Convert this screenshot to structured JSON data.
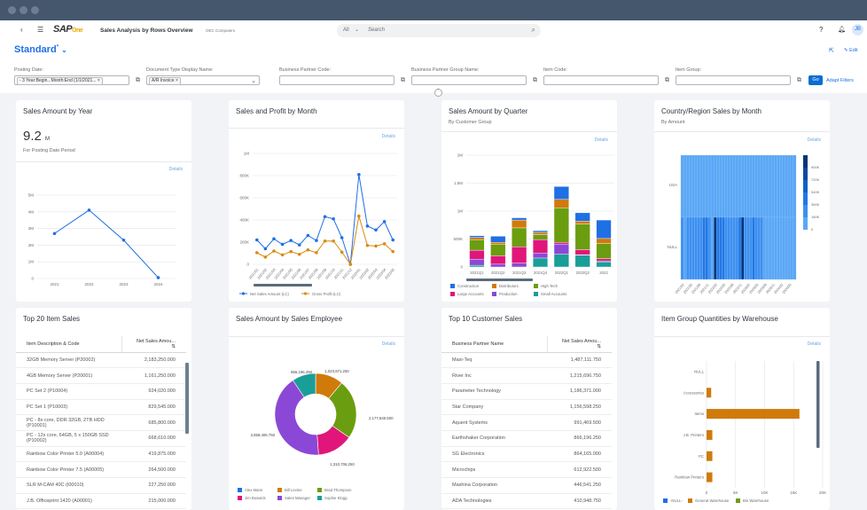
{
  "app": {
    "logo": "SAP Business One",
    "title": "Sales Analysis by Rows Overview",
    "company": "OEC Computers",
    "search_scope": "All",
    "search_placeholder": "Search",
    "avatar": "JB",
    "variant": "Standard",
    "variant_modified": "*",
    "edit_label": "Edit",
    "go_label": "Go",
    "adapt_filters_label": "Adapt Filters"
  },
  "filters": [
    {
      "label": "Posting Date:",
      "token": "- 3 Year:Begin...Month:End (1/1/2021...",
      "icon": "value-help-icon"
    },
    {
      "label": "Document Type Display Name:",
      "token": "A/R Invoice",
      "icon": "chevron-down-icon"
    },
    {
      "label": "Business Partner Code:",
      "token": "",
      "icon": "value-help-icon"
    },
    {
      "label": "Business Partner Group Name:",
      "token": "",
      "icon": "value-help-icon"
    },
    {
      "label": "Item Code:",
      "token": "",
      "icon": "value-help-icon"
    },
    {
      "label": "Item Group:",
      "token": "",
      "icon": "value-help-icon"
    }
  ],
  "details_label": "Details",
  "cards": {
    "year": {
      "title": "Sales Amount by Year",
      "kpi": "9.2",
      "kpi_unit": "M",
      "kpi_caption": "For Posting Date Period"
    },
    "month": {
      "title": "Sales and Profit by Month"
    },
    "quarter": {
      "title": "Sales Amount by Quarter",
      "subtitle": "By Customer Group"
    },
    "country": {
      "title": "Country/Region Sales by Month",
      "subtitle": "By Amount"
    },
    "items": {
      "title": "Top 20 Item Sales",
      "columns": [
        "Item Description & Code",
        "Net Sales Amou..."
      ],
      "rows": [
        [
          "32GB Memory Server (P20002)",
          "2,183,250.000"
        ],
        [
          "4GB Memory Server (P20001)",
          "1,161,250.000"
        ],
        [
          "PC Set 2 (P10004)",
          "924,020.000"
        ],
        [
          "PC Set 1 (P10003)",
          "829,545.000"
        ],
        [
          "PC - 8x core, DDR 32GB, 2TB HDD (P10001)",
          "685,800.000"
        ],
        [
          "PC - 12x core, 64GB, 5 x 150GB SSD (P10002)",
          "668,610.000"
        ],
        [
          "Rainbow Color Printer 5.0 (A00004)",
          "419,875.000"
        ],
        [
          "Rainbow Color Printer 7.5 (A00005)",
          "264,500.000"
        ],
        [
          "SLR M-CAM 40C (I00010)",
          "227,250.000"
        ],
        [
          "J.B. Officeprint 1420 (A00001)",
          "215,000.000"
        ]
      ]
    },
    "employee": {
      "title": "Sales Amount by Sales Employee"
    },
    "customers": {
      "title": "Top 10 Customer Sales",
      "columns": [
        "Business Partner Name",
        "Net Sales Amou..."
      ],
      "rows": [
        [
          "Maxi-Teq",
          "1,487,111.750"
        ],
        [
          "River Inc",
          "1,215,696.750"
        ],
        [
          "Parameter Technology",
          "1,186,371.000"
        ],
        [
          "Star Company",
          "1,156,598.250"
        ],
        [
          "Aquent Systems",
          "991,469.500"
        ],
        [
          "Earthshaker Corporation",
          "866,196.250"
        ],
        [
          "SG Electronics",
          "864,165.000"
        ],
        [
          "Microchips",
          "612,922.500"
        ],
        [
          "Mashina Corporation",
          "446,541.250"
        ],
        [
          "ADA Technologies",
          "410,948.750"
        ]
      ]
    },
    "warehouse": {
      "title": "Item Group Quantities by Warehouse"
    }
  },
  "chart_data": [
    {
      "id": "year",
      "type": "line",
      "categories": [
        "2021",
        "2022",
        "2023",
        "2024"
      ],
      "values": [
        2.7,
        4.1,
        2.3,
        0.05
      ],
      "yticks": [
        "0",
        "1M",
        "2M",
        "3M",
        "4M",
        "5M"
      ],
      "ylim": [
        0,
        5
      ],
      "unit": "M",
      "color": "#1f6fe5",
      "grid": true
    },
    {
      "id": "month",
      "type": "line",
      "categories": [
        "2021/01",
        "2021/02",
        "2021/03",
        "2021/04",
        "2021/05",
        "2021/06",
        "2021/07",
        "2021/08",
        "2021/09",
        "2021/10",
        "2021/11",
        "2021/12",
        "2022/01",
        "2022/02",
        "2022/03",
        "2022/04",
        "2022/05"
      ],
      "series": [
        {
          "name": "Net Sales Amount (LC)",
          "color": "#1f6fe5",
          "values": [
            220,
            140,
            230,
            180,
            215,
            175,
            260,
            215,
            430,
            410,
            240,
            0,
            810,
            345,
            310,
            385,
            220
          ]
        },
        {
          "name": "Gross Profit (LC)",
          "color": "#d98a10",
          "values": [
            105,
            65,
            120,
            85,
            115,
            90,
            130,
            105,
            210,
            210,
            110,
            0,
            435,
            170,
            165,
            185,
            115
          ]
        }
      ],
      "unit": "K",
      "yticks": [
        "0",
        "200K",
        "400K",
        "600K",
        "800K",
        "1M"
      ],
      "ylim": [
        0,
        1000
      ],
      "grid": true,
      "legend": "bottom"
    },
    {
      "id": "quarter",
      "type": "bar",
      "stacked": true,
      "categories": [
        "2021Q1",
        "2021Q2",
        "2021Q3",
        "2021Q4",
        "2022Q1",
        "2022Q2",
        "2022"
      ],
      "series": [
        {
          "name": "Small Accounts",
          "color": "#1a9e98",
          "values": [
            30,
            0,
            0,
            160,
            230,
            210,
            90
          ]
        },
        {
          "name": "Production",
          "color": "#8b48d6",
          "values": [
            110,
            50,
            70,
            90,
            180,
            10,
            20
          ]
        },
        {
          "name": "Large Accounts",
          "color": "#e0167a",
          "values": [
            160,
            150,
            290,
            240,
            30,
            90,
            40
          ]
        },
        {
          "name": "High Tech",
          "color": "#6b9d10",
          "values": [
            190,
            200,
            340,
            90,
            620,
            460,
            270
          ]
        },
        {
          "name": "Distributors",
          "color": "#d07a0c",
          "values": [
            40,
            40,
            140,
            40,
            150,
            50,
            90
          ]
        },
        {
          "name": "Construction",
          "color": "#1f6fe5",
          "values": [
            30,
            110,
            40,
            30,
            230,
            150,
            330
          ]
        }
      ],
      "legend_order": [
        "Construction",
        "Distributors",
        "High Tech",
        "Large Accounts",
        "Production",
        "Small Accounts"
      ],
      "unit": "K",
      "yticks": [
        "0",
        "500K",
        "1M",
        "1.5M",
        "2M"
      ],
      "ylim": [
        0,
        2000
      ],
      "grid": true,
      "legend": "bottom"
    },
    {
      "id": "country",
      "type": "heatmap",
      "rows": [
        "USA",
        "NULL"
      ],
      "xticks": [
        "2021/02",
        "2021/05",
        "2021/08",
        "2021/11",
        "2022/02",
        "2022/05",
        "2022/08",
        "2022/11",
        "2023/02",
        "2023/05",
        "2023/08",
        "2023/11",
        "2024/02",
        "2024/05"
      ],
      "values": {
        "USA": [
          60,
          60,
          60,
          60,
          60,
          60,
          60,
          60,
          60,
          60,
          60,
          60,
          60,
          60,
          60,
          60,
          60,
          60,
          60,
          60,
          60,
          60,
          60,
          60,
          60,
          60,
          60,
          60,
          60,
          60,
          60,
          60,
          60,
          60,
          60,
          60,
          60,
          60,
          60,
          60,
          60,
          60
        ],
        "NULL": [
          220,
          140,
          230,
          180,
          215,
          175,
          260,
          215,
          430,
          410,
          240,
          0,
          810,
          345,
          310,
          385,
          220,
          230,
          240,
          180,
          260,
          300,
          810,
          200,
          180,
          240,
          300,
          260,
          220,
          200,
          120,
          110,
          100,
          90,
          100,
          110,
          90,
          100,
          80,
          90,
          100,
          110
        ]
      },
      "scale": [
        "0",
        "180K",
        "360K",
        "540K",
        "720K",
        "900K"
      ],
      "colors": [
        "#5aa7f5",
        "#3d8ff0",
        "#2277e6",
        "#1160c8",
        "#0a4aa0",
        "#043578"
      ],
      "legend": "right"
    },
    {
      "id": "employee",
      "type": "pie",
      "donut": true,
      "series": [
        {
          "name": "Alex Mann",
          "color": "#1f6fe5",
          "value": 0
        },
        {
          "name": "Bill Levine",
          "color": "#d07a0c",
          "value": 1023871.25,
          "label": "1,023,871.250"
        },
        {
          "name": "Brad Thompson",
          "color": "#6b9d10",
          "value": 2177840.5,
          "label": "2,177,840.500"
        },
        {
          "name": "Jim Boswick",
          "color": "#e0167a",
          "value": 1310706.25,
          "label": "1,310,706.250"
        },
        {
          "name": "Sales Manager",
          "color": "#8b48d6",
          "value": 3859406.75,
          "label": "3,859,406.750"
        },
        {
          "name": "Sophie Klogg",
          "color": "#1a9e98",
          "value": 866196.25,
          "label": "866,196.250"
        }
      ],
      "legend": "bottom"
    },
    {
      "id": "warehouse",
      "type": "bar",
      "orientation": "horizontal",
      "categories": [
        "NULL",
        "Accessories",
        "Items",
        "J.B. Printers",
        "PC",
        "Rainbow Printers"
      ],
      "series": [
        {
          "name": "-NULL-",
          "color": "#1f6fe5",
          "values": [
            0,
            0,
            0,
            0,
            0,
            0
          ]
        },
        {
          "name": "General Warehouse",
          "color": "#d07a0c",
          "values": [
            0,
            800,
            16000,
            1000,
            1000,
            1000
          ]
        },
        {
          "name": "Bin Warehouse",
          "color": "#6b9d10",
          "values": [
            0,
            0,
            0,
            0,
            0,
            0
          ]
        }
      ],
      "xticks": [
        "0",
        "5K",
        "10K",
        "15K",
        "20K"
      ],
      "xlim": [
        0,
        20000
      ],
      "grid": true,
      "legend": "bottom"
    }
  ]
}
